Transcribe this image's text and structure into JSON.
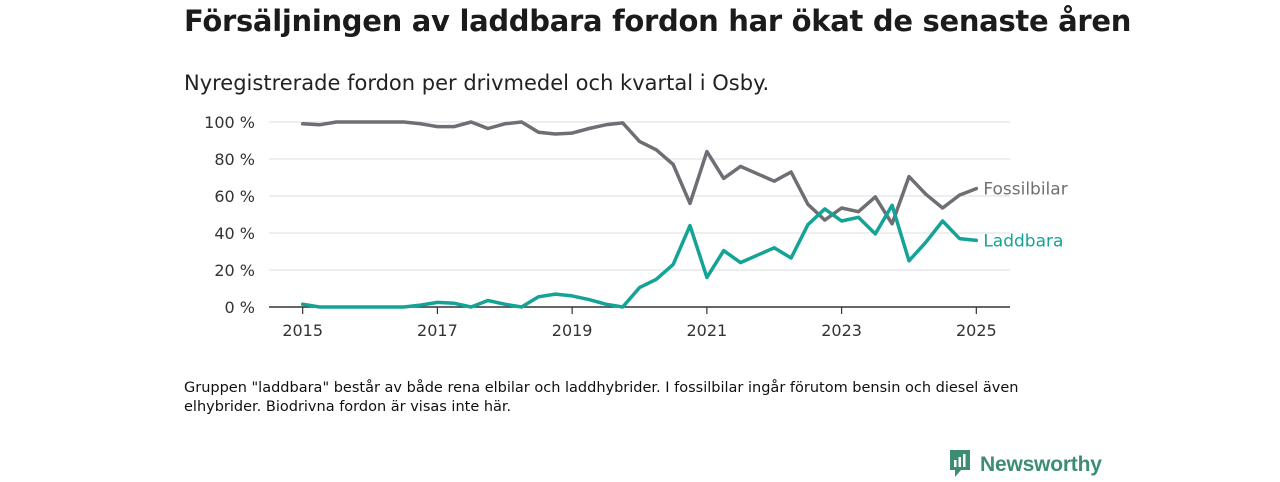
{
  "header": {
    "title": "Försäljningen av laddbara fordon har ökat de senaste åren",
    "subtitle": "Nyregistrerade fordon per drivmedel och kvartal i Osby."
  },
  "footnote": "Gruppen \"laddbara\" består av både rena elbilar och laddhybrider. I fossilbilar ingår förutom bensin och diesel även elhybrider. Biodrivna fordon är visas inte här.",
  "brand": {
    "name": "Newsworthy",
    "icon": "newsworthy-logo-icon",
    "color": "#3c8d74"
  },
  "chart_data": {
    "type": "line",
    "title": "",
    "xlabel": "",
    "ylabel": "",
    "x_ticks": [
      "2015",
      "2017",
      "2019",
      "2021",
      "2023",
      "2025"
    ],
    "y_ticks": [
      "0 %",
      "20 %",
      "40 %",
      "60 %",
      "80 %",
      "100 %"
    ],
    "ylim": [
      0,
      100
    ],
    "xlim": [
      2014.5,
      2025.5
    ],
    "grid": "horizontal",
    "x": [
      2015.0,
      2015.25,
      2015.5,
      2015.75,
      2016.0,
      2016.25,
      2016.5,
      2016.75,
      2017.0,
      2017.25,
      2017.5,
      2017.75,
      2018.0,
      2018.25,
      2018.5,
      2018.75,
      2019.0,
      2019.25,
      2019.5,
      2019.75,
      2020.0,
      2020.25,
      2020.5,
      2020.75,
      2021.0,
      2021.25,
      2021.5,
      2021.75,
      2022.0,
      2022.25,
      2022.5,
      2022.75,
      2023.0,
      2023.25,
      2023.5,
      2023.75,
      2024.0,
      2024.25,
      2024.5,
      2024.75,
      2025.0
    ],
    "series": [
      {
        "name": "Fossilbilar",
        "color": "#6f6e74",
        "values": [
          99,
          98.5,
          100,
          100,
          100,
          100,
          100,
          99,
          97.5,
          97.5,
          100,
          96.5,
          99,
          100,
          94.5,
          93.5,
          94,
          96.5,
          98.5,
          99.5,
          89.5,
          85,
          77,
          56,
          84,
          69.5,
          76,
          72,
          68,
          73,
          55.5,
          47,
          53.5,
          51.5,
          59.5,
          45,
          70.5,
          61,
          53.5,
          60.5,
          64
        ]
      },
      {
        "name": "Laddbara",
        "color": "#14a397",
        "values": [
          1.5,
          0,
          0,
          0,
          0,
          0,
          0,
          1,
          2.5,
          2,
          0,
          3.5,
          1.5,
          0,
          5.5,
          7,
          6,
          4,
          1.5,
          0,
          10.5,
          15,
          23,
          44,
          16,
          30.5,
          24,
          28,
          32,
          26.5,
          44.5,
          53,
          46.5,
          48.5,
          39.5,
          55,
          25,
          35,
          46.5,
          37,
          36
        ]
      }
    ]
  }
}
